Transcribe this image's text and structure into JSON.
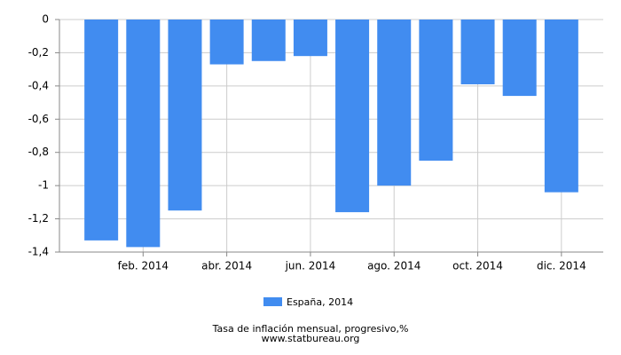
{
  "chart_data": {
    "type": "bar",
    "categories": [
      null,
      "feb. 2014",
      null,
      "abr. 2014",
      null,
      "jun. 2014",
      null,
      "ago. 2014",
      null,
      "oct. 2014",
      null,
      "dic. 2014"
    ],
    "series": [
      {
        "name": "España, 2014",
        "color": "#418cf0",
        "values": [
          -1.33,
          -1.37,
          -1.15,
          -0.27,
          -0.25,
          -0.22,
          -1.16,
          -1.0,
          -0.85,
          -0.39,
          -0.46,
          -1.04
        ]
      }
    ],
    "ylim": [
      -1.4,
      0
    ],
    "yticks": [
      {
        "value": -1.4,
        "label": "-1,4"
      },
      {
        "value": -1.2,
        "label": "-1,2"
      },
      -1,
      {
        "value": -0.8,
        "label": "-0,8"
      },
      {
        "value": -0.6,
        "label": "-0,6"
      },
      {
        "value": -0.4,
        "label": "-0,4"
      },
      {
        "value": -0.2,
        "label": "-0,2"
      },
      0
    ],
    "grid": true,
    "legend": "bottom",
    "title": "Tasa de inflación mensual, progresivo,%",
    "subtitle": "www.statbureau.org"
  }
}
